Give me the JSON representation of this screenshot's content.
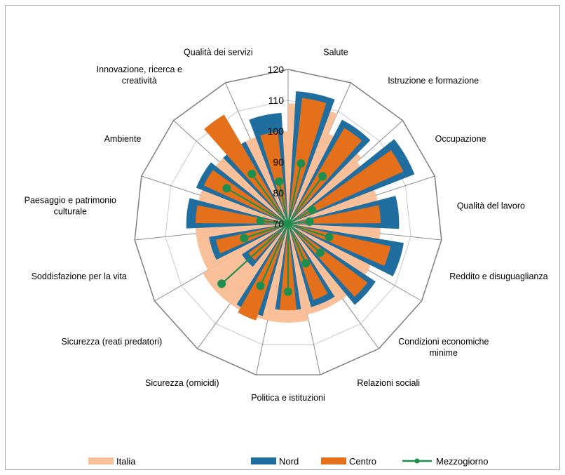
{
  "chart_data": {
    "type": "radar",
    "categories": [
      "Salute",
      "Istruzione e formazione",
      "Occupazione",
      "Qualità del lavoro",
      "Reddito e disuguaglianza",
      "Condizioni economiche minime",
      "Relazioni sociali",
      "Politica e istituzioni",
      "Sicurezza (omicidi)",
      "Sicurezza (reati predatori)",
      "Soddisfazione per la vita",
      "Paesaggio e patrimonio culturale",
      "Ambiente",
      "Innovazione, ricerca e creatività",
      "Qualità dei servizi"
    ],
    "category_lines": [
      [
        "Salute"
      ],
      [
        "Istruzione e formazione"
      ],
      [
        "Occupazione"
      ],
      [
        "Qualità del lavoro"
      ],
      [
        "Reddito e disuguaglianza"
      ],
      [
        "Condizioni economiche",
        "minime"
      ],
      [
        "Relazioni sociali"
      ],
      [
        "Politica e istituzioni"
      ],
      [
        "Sicurezza (omicidi)"
      ],
      [
        "Sicurezza (reati predatori)"
      ],
      [
        "Soddisfazione per la vita"
      ],
      [
        "Paesaggio e patrimonio",
        "culturale"
      ],
      [
        "Ambiente"
      ],
      [
        "Innovazione, ricerca e",
        "creatività"
      ],
      [
        "Qualità dei servizi"
      ]
    ],
    "radial_ticks": [
      "70",
      "80",
      "90",
      "100",
      "110",
      "120"
    ],
    "rlim": [
      70,
      120
    ],
    "grid": true,
    "legend_position": "bottom",
    "series": [
      {
        "name": "Italia",
        "style": "bar",
        "color": "#F9C09A",
        "values": [
          109,
          102,
          100,
          100,
          100,
          100,
          100,
          102,
          102,
          102,
          100,
          100,
          100,
          100,
          100
        ]
      },
      {
        "name": "Nord",
        "style": "bar",
        "color": "#1F6E9F",
        "values": [
          113,
          108,
          114,
          106,
          108,
          104,
          98,
          98,
          101,
          88,
          96,
          103,
          102,
          100,
          106
        ]
      },
      {
        "name": "Centro",
        "style": "bar",
        "color": "#E5701B",
        "values": [
          111,
          106,
          111,
          100,
          104,
          102,
          96,
          98,
          103,
          86,
          94,
          100,
          100,
          111,
          100
        ]
      },
      {
        "name": "Mezzogiorno",
        "style": "line",
        "color": "#1E8E4E",
        "values": [
          90,
          89,
          79,
          77,
          84,
          84,
          84,
          92,
          92,
          99,
          85,
          79,
          93,
          90,
          84
        ]
      }
    ]
  }
}
